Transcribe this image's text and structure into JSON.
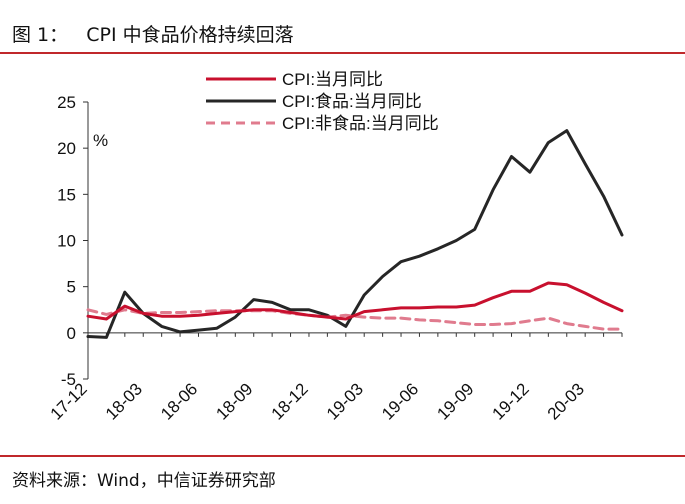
{
  "header": {
    "title": "图 1：   CPI 中食品价格持续回落"
  },
  "footer": {
    "source": "资料来源：Wind，中信证券研究部"
  },
  "chart_data": {
    "type": "line",
    "ylabel": "%",
    "ylim": [
      -5,
      25
    ],
    "yticks": [
      -5,
      0,
      5,
      10,
      15,
      20,
      25
    ],
    "grid": false,
    "legend": "top-center",
    "x": [
      "17-12",
      "18-01",
      "18-02",
      "18-03",
      "18-04",
      "18-05",
      "18-06",
      "18-07",
      "18-08",
      "18-09",
      "18-10",
      "18-11",
      "18-12",
      "19-01",
      "19-02",
      "19-03",
      "19-04",
      "19-05",
      "19-06",
      "19-07",
      "19-08",
      "19-09",
      "19-10",
      "19-11",
      "19-12",
      "20-01",
      "20-02",
      "20-03",
      "20-04",
      "20-05"
    ],
    "xtick_labels": [
      "17-12",
      "18-03",
      "18-06",
      "18-09",
      "18-12",
      "19-03",
      "19-06",
      "19-09",
      "19-12",
      "20-03"
    ],
    "series": [
      {
        "name": "CPI:当月同比",
        "color": "#c8102e",
        "dash": false,
        "width": 3,
        "values": [
          1.8,
          1.5,
          2.9,
          2.1,
          1.8,
          1.8,
          1.9,
          2.1,
          2.3,
          2.5,
          2.5,
          2.2,
          1.9,
          1.7,
          1.5,
          2.3,
          2.5,
          2.7,
          2.7,
          2.8,
          2.8,
          3.0,
          3.8,
          4.5,
          4.5,
          5.4,
          5.2,
          4.3,
          3.3,
          2.4
        ]
      },
      {
        "name": "CPI:食品:当月同比",
        "color": "#262626",
        "dash": false,
        "width": 3,
        "values": [
          -0.4,
          -0.5,
          4.4,
          2.1,
          0.7,
          0.1,
          0.3,
          0.5,
          1.7,
          3.6,
          3.3,
          2.5,
          2.5,
          1.9,
          0.7,
          4.1,
          6.1,
          7.7,
          8.3,
          9.1,
          10.0,
          11.2,
          15.5,
          19.1,
          17.4,
          20.6,
          21.9,
          18.3,
          14.8,
          10.6
        ]
      },
      {
        "name": "CPI:非食品:当月同比",
        "color": "#e07b8e",
        "dash": true,
        "width": 3,
        "values": [
          2.5,
          2.0,
          2.5,
          2.1,
          2.2,
          2.2,
          2.3,
          2.4,
          2.4,
          2.4,
          2.4,
          2.1,
          1.9,
          1.7,
          1.9,
          1.7,
          1.6,
          1.6,
          1.4,
          1.3,
          1.1,
          0.9,
          0.9,
          1.0,
          1.3,
          1.6,
          1.0,
          0.7,
          0.4,
          0.4
        ]
      }
    ]
  }
}
